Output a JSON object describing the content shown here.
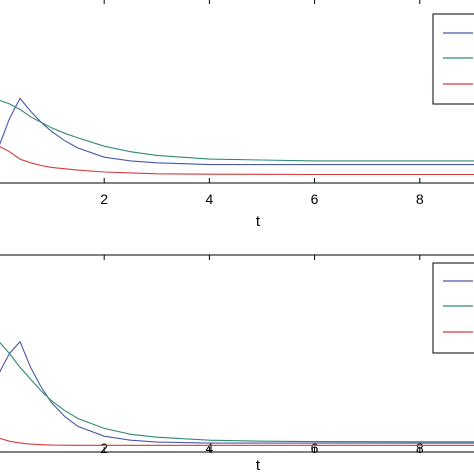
{
  "chart_data": [
    {
      "type": "line",
      "xlabel": "t",
      "ylabel": "",
      "title": "",
      "xlim": [
        0,
        9.05
      ],
      "ylim": [
        0,
        1.0
      ],
      "xticks": [
        2,
        4,
        6,
        8
      ],
      "grid": false,
      "legend_position": "top-right",
      "series": [
        {
          "color": "#4a58a8",
          "x": [
            0,
            0.2,
            0.4,
            0.6,
            0.8,
            1.0,
            1.25,
            1.5,
            2.0,
            2.5,
            3.0,
            4.0,
            5.0,
            6.0,
            8.0,
            9.05
          ],
          "values": [
            0.2,
            0.35,
            0.46,
            0.39,
            0.33,
            0.28,
            0.23,
            0.19,
            0.14,
            0.12,
            0.11,
            0.1,
            0.1,
            0.1,
            0.1,
            0.1
          ]
        },
        {
          "color": "#2e8b6e",
          "x": [
            0,
            0.2,
            0.4,
            0.6,
            0.8,
            1.0,
            1.25,
            1.5,
            2.0,
            2.5,
            3.0,
            4.0,
            5.0,
            6.0,
            8.0,
            9.05
          ],
          "values": [
            0.45,
            0.43,
            0.4,
            0.36,
            0.33,
            0.3,
            0.27,
            0.245,
            0.2,
            0.17,
            0.15,
            0.13,
            0.125,
            0.12,
            0.12,
            0.12
          ]
        },
        {
          "color": "#d23c3c",
          "x": [
            0,
            0.2,
            0.4,
            0.6,
            0.8,
            1.0,
            1.5,
            2.0,
            3.0,
            4.0,
            6.0,
            8.0,
            9.05
          ],
          "values": [
            0.2,
            0.17,
            0.13,
            0.11,
            0.095,
            0.085,
            0.07,
            0.06,
            0.05,
            0.048,
            0.046,
            0.046,
            0.046
          ]
        }
      ]
    },
    {
      "type": "line",
      "xlabel": "t",
      "ylabel": "",
      "title": "",
      "xlim": [
        0,
        9.05
      ],
      "ylim": [
        0,
        1.0
      ],
      "xticks": [
        2,
        4,
        6,
        8
      ],
      "grid": false,
      "legend_position": "top-right",
      "series": [
        {
          "color": "#4a58a8",
          "x": [
            0,
            0.2,
            0.4,
            0.6,
            0.8,
            1.0,
            1.25,
            1.5,
            2.0,
            2.5,
            3.0,
            4.0,
            5.0,
            6.0,
            8.0,
            9.05
          ],
          "values": [
            0.4,
            0.5,
            0.56,
            0.43,
            0.33,
            0.25,
            0.18,
            0.13,
            0.08,
            0.06,
            0.05,
            0.045,
            0.045,
            0.045,
            0.045,
            0.045
          ]
        },
        {
          "color": "#2e8b6e",
          "x": [
            0,
            0.2,
            0.4,
            0.6,
            0.8,
            1.0,
            1.25,
            1.5,
            2.0,
            2.5,
            3.0,
            4.0,
            5.0,
            6.0,
            8.0,
            9.05
          ],
          "values": [
            0.56,
            0.5,
            0.43,
            0.37,
            0.31,
            0.26,
            0.21,
            0.17,
            0.12,
            0.09,
            0.075,
            0.06,
            0.055,
            0.053,
            0.052,
            0.052
          ]
        },
        {
          "color": "#d23c3c",
          "x": [
            0,
            0.2,
            0.4,
            0.6,
            0.8,
            1.0,
            1.5,
            2.0,
            3.0,
            4.0,
            6.0,
            8.0,
            9.05
          ],
          "values": [
            0.07,
            0.055,
            0.045,
            0.04,
            0.037,
            0.035,
            0.034,
            0.034,
            0.034,
            0.034,
            0.034,
            0.034,
            0.034
          ]
        }
      ]
    }
  ]
}
